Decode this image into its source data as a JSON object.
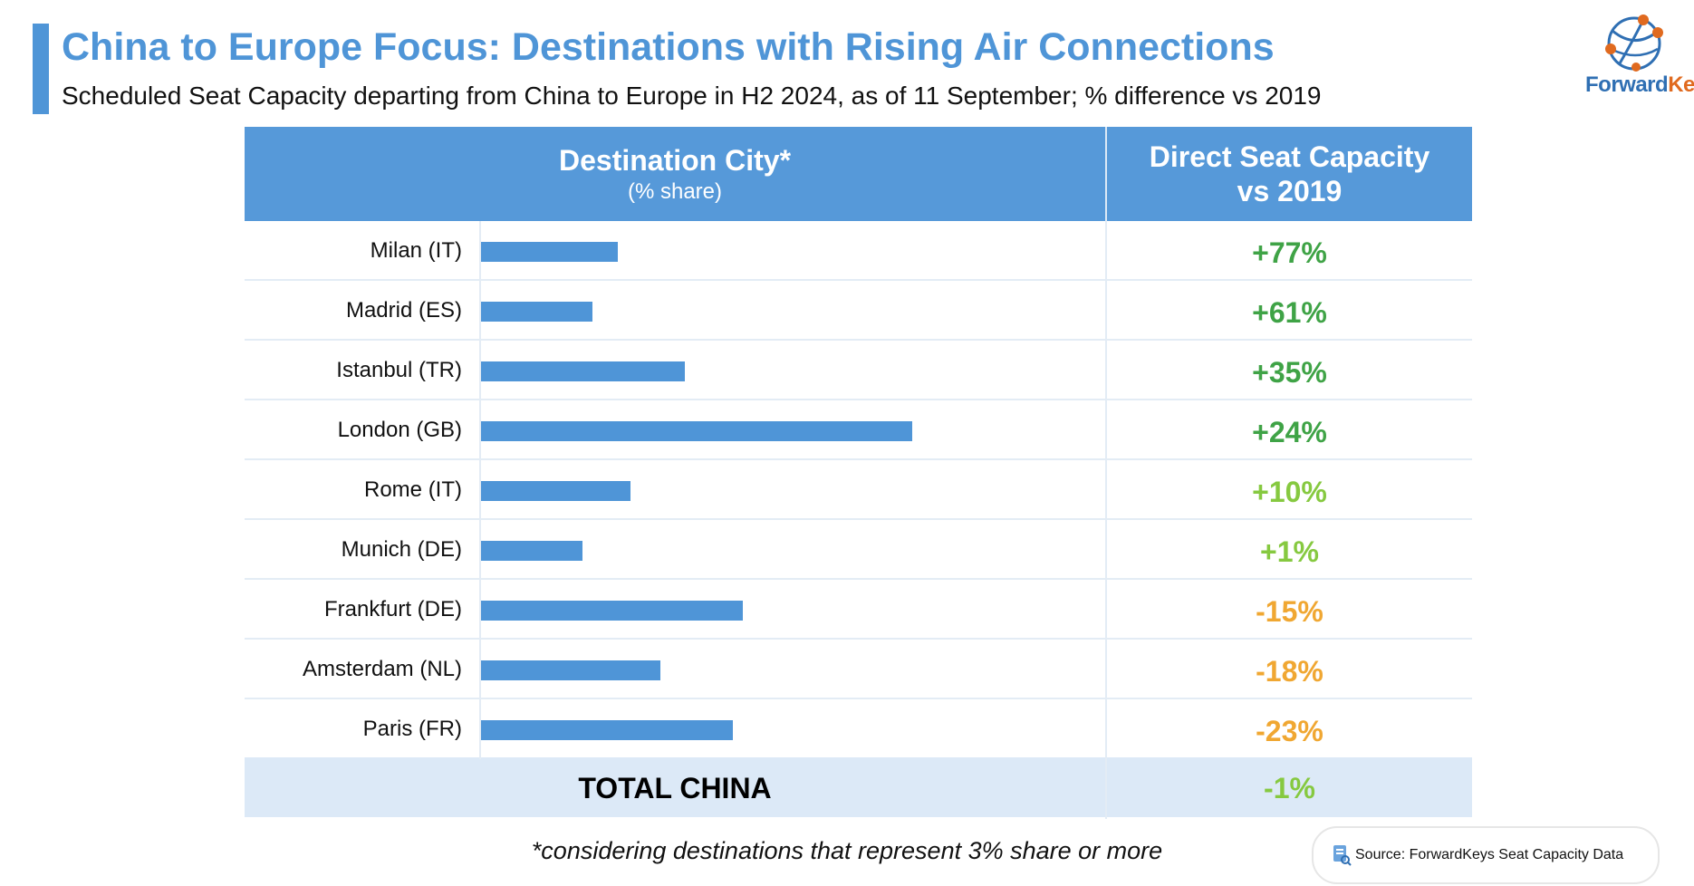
{
  "header": {
    "title": "China to Europe Focus: Destinations with Rising Air Connections",
    "subtitle": "Scheduled Seat Capacity departing from China to Europe in H2 2024, as of 11 September; % difference vs 2019"
  },
  "logo": {
    "part1": "Forward",
    "part2": "Keys",
    "icon": "globe-network-icon"
  },
  "colors": {
    "accent": "#4f95d7",
    "header_bg": "#5699d9",
    "total_bg": "#dce9f7",
    "strong_green": "#3fa346",
    "light_green": "#86c940",
    "orange": "#f0a732"
  },
  "chart_data": {
    "type": "table",
    "title": "China to Europe Focus: Destinations with Rising Air Connections",
    "columns": {
      "destination": "Destination City*",
      "destination_sub": "(% share)",
      "capacity_line1": "Direct Seat Capacity",
      "capacity_line2": "vs 2019"
    },
    "categories": [
      "Milan (IT)",
      "Madrid (ES)",
      "Istanbul (TR)",
      "London (GB)",
      "Rome (IT)",
      "Munich (DE)",
      "Frankfurt (DE)",
      "Amsterdam (NL)",
      "Paris (FR)"
    ],
    "share_percent_estimated": [
      5.5,
      4.5,
      8.2,
      17.3,
      6.0,
      4.1,
      10.5,
      7.2,
      10.1
    ],
    "share_axis_max": 25,
    "change_vs_2019": [
      "+77%",
      "+61%",
      "+35%",
      "+24%",
      "+10%",
      "+1%",
      "-15%",
      "-18%",
      "-23%"
    ],
    "change_colors": [
      "#3fa346",
      "#3fa346",
      "#3fa346",
      "#3fa346",
      "#86c940",
      "#86c940",
      "#f0a732",
      "#f0a732",
      "#f0a732"
    ],
    "total": {
      "label": "TOTAL CHINA",
      "value": "-1%",
      "color": "#86c940"
    }
  },
  "footnote": "*considering destinations that represent 3% share or more",
  "source": {
    "label": "Source: ForwardKeys Seat Capacity Data",
    "icon": "document-search-icon"
  }
}
